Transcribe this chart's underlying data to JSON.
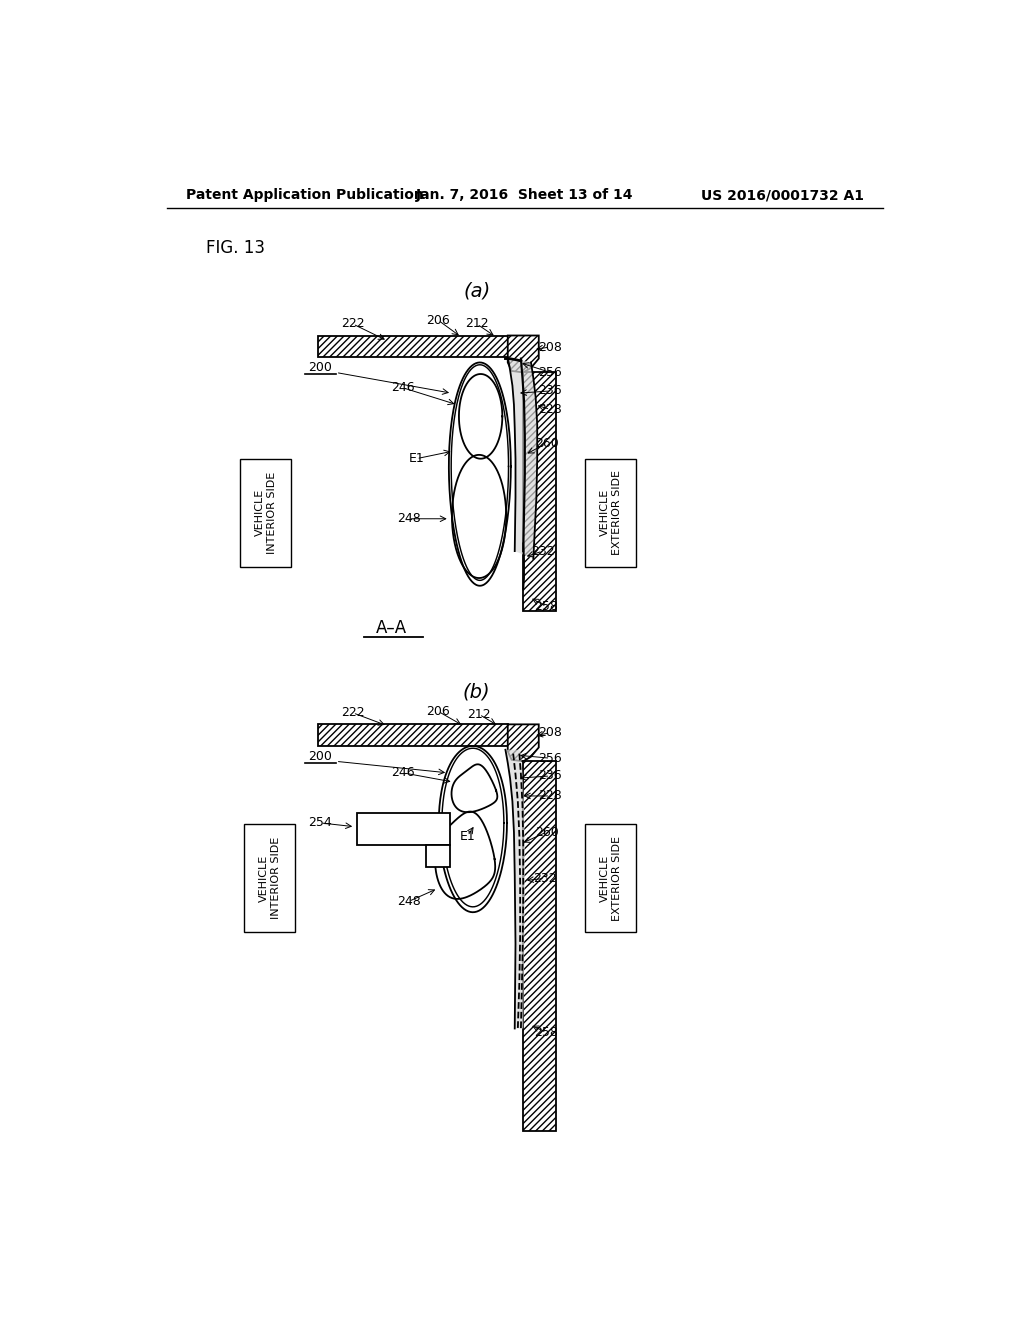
{
  "title_left": "Patent Application Publication",
  "title_mid": "Jan. 7, 2016  Sheet 13 of 14",
  "title_right": "US 2016/0001732 A1",
  "fig_label": "FIG. 13",
  "background_color": "#ffffff",
  "line_color": "#000000"
}
